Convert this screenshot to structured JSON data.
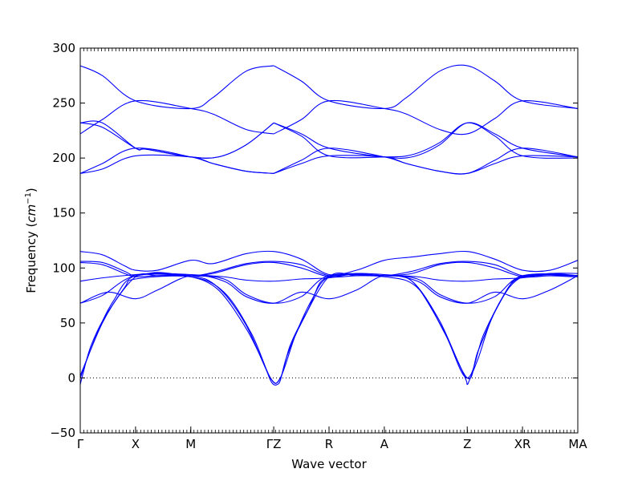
{
  "chart_data": {
    "type": "line",
    "xlabel": "Wave vector",
    "ylabel": {
      "prefix": "Frequency (",
      "unit_base": "cm",
      "unit_exp": "−1",
      "suffix": ")"
    },
    "ylim": [
      -50,
      300
    ],
    "yticks": [
      -50,
      0,
      50,
      100,
      150,
      200,
      250,
      300
    ],
    "grid": false,
    "legend": "none",
    "zero_line": "dotted",
    "line_color": "#0000ff",
    "kpoints": [
      {
        "label": "Γ",
        "x": 0.0
      },
      {
        "label": "X",
        "x": 0.5
      },
      {
        "label": "M",
        "x": 1.0
      },
      {
        "label": "ΓZ",
        "x": 1.75
      },
      {
        "label": "R",
        "x": 2.25
      },
      {
        "label": "A",
        "x": 2.75
      },
      {
        "label": "Z",
        "x": 3.5
      },
      {
        "label": "XR",
        "x": 4.0
      },
      {
        "label": "MA",
        "x": 4.5
      }
    ],
    "series": [
      {
        "values": [
          [
            0,
            284
          ],
          [
            0.2,
            275
          ],
          [
            0.5,
            252
          ],
          [
            1.0,
            245
          ],
          [
            1.2,
            255
          ],
          [
            1.5,
            279
          ],
          [
            1.75,
            284
          ]
        ]
      },
      {
        "values": [
          [
            0,
            232
          ],
          [
            0.2,
            232
          ],
          [
            0.5,
            209
          ],
          [
            0.6,
            208
          ],
          [
            1.0,
            201
          ],
          [
            1.25,
            201
          ],
          [
            1.5,
            212
          ],
          [
            1.75,
            232
          ]
        ]
      },
      {
        "values": [
          [
            0,
            232
          ],
          [
            0.2,
            228
          ],
          [
            0.5,
            209
          ],
          [
            0.6,
            208
          ],
          [
            1.0,
            201
          ],
          [
            1.25,
            201
          ],
          [
            1.5,
            212
          ],
          [
            1.75,
            232
          ]
        ]
      },
      {
        "values": [
          [
            0,
            222
          ],
          [
            0.2,
            235
          ],
          [
            0.5,
            252
          ],
          [
            1.0,
            245
          ],
          [
            1.2,
            240
          ],
          [
            1.5,
            226
          ],
          [
            1.75,
            222
          ]
        ]
      },
      {
        "values": [
          [
            0,
            186
          ],
          [
            0.2,
            190
          ],
          [
            0.5,
            202
          ],
          [
            1.0,
            201
          ],
          [
            1.2,
            195
          ],
          [
            1.5,
            188
          ],
          [
            1.75,
            186
          ]
        ]
      },
      {
        "values": [
          [
            0,
            186
          ],
          [
            0.2,
            195
          ],
          [
            0.5,
            209
          ],
          [
            1.0,
            201
          ],
          [
            1.2,
            195
          ],
          [
            1.5,
            188
          ],
          [
            1.75,
            186
          ]
        ]
      },
      {
        "values": [
          [
            1.75,
            284
          ],
          [
            2.0,
            270
          ],
          [
            2.25,
            252
          ],
          [
            2.75,
            245
          ],
          [
            2.95,
            255
          ],
          [
            3.25,
            279
          ],
          [
            3.5,
            284
          ],
          [
            3.75,
            270
          ],
          [
            4.0,
            252
          ],
          [
            4.5,
            245
          ]
        ]
      },
      {
        "values": [
          [
            1.75,
            232
          ],
          [
            2.0,
            222
          ],
          [
            2.25,
            209
          ],
          [
            2.75,
            201
          ],
          [
            3.0,
            201
          ],
          [
            3.25,
            212
          ],
          [
            3.5,
            232
          ],
          [
            3.75,
            222
          ],
          [
            4.0,
            209
          ],
          [
            4.5,
            201
          ]
        ]
      },
      {
        "values": [
          [
            1.75,
            222
          ],
          [
            2.0,
            235
          ],
          [
            2.25,
            252
          ],
          [
            2.75,
            245
          ],
          [
            2.95,
            240
          ],
          [
            3.25,
            226
          ],
          [
            3.5,
            222
          ],
          [
            3.75,
            236
          ],
          [
            4.0,
            252
          ],
          [
            4.5,
            245
          ]
        ]
      },
      {
        "values": [
          [
            1.75,
            186
          ],
          [
            2.0,
            195
          ],
          [
            2.25,
            202
          ],
          [
            2.75,
            201
          ],
          [
            2.95,
            195
          ],
          [
            3.25,
            188
          ],
          [
            3.5,
            186
          ],
          [
            3.75,
            195
          ],
          [
            4.0,
            202
          ],
          [
            4.5,
            201
          ]
        ]
      },
      {
        "values": [
          [
            1.75,
            186
          ],
          [
            2.0,
            198
          ],
          [
            2.25,
            209
          ],
          [
            2.75,
            201
          ],
          [
            2.95,
            195
          ],
          [
            3.25,
            188
          ],
          [
            3.5,
            186
          ],
          [
            3.75,
            198
          ],
          [
            4.0,
            209
          ],
          [
            4.5,
            201
          ]
        ]
      },
      {
        "values": [
          [
            1.75,
            232
          ],
          [
            2.0,
            220
          ],
          [
            2.25,
            202
          ],
          [
            2.75,
            201
          ],
          [
            3.0,
            203
          ],
          [
            3.25,
            214
          ],
          [
            3.5,
            232
          ],
          [
            3.75,
            220
          ],
          [
            4.0,
            202
          ],
          [
            4.5,
            200
          ]
        ]
      },
      {
        "values": [
          [
            0,
            115
          ],
          [
            0.2,
            112
          ],
          [
            0.4,
            102
          ],
          [
            0.5,
            98
          ],
          [
            0.7,
            98
          ],
          [
            1.0,
            107
          ],
          [
            1.2,
            104
          ],
          [
            1.5,
            113
          ],
          [
            1.75,
            115
          ],
          [
            2.0,
            108
          ],
          [
            2.25,
            94
          ],
          [
            2.5,
            98
          ],
          [
            2.75,
            107
          ],
          [
            3.0,
            110
          ],
          [
            3.25,
            113
          ],
          [
            3.5,
            115
          ],
          [
            3.75,
            108
          ],
          [
            4.0,
            98
          ],
          [
            4.25,
            98
          ],
          [
            4.5,
            107
          ]
        ]
      },
      {
        "values": [
          [
            0,
            106
          ],
          [
            0.2,
            105
          ],
          [
            0.4,
            97
          ],
          [
            0.5,
            93
          ],
          [
            0.7,
            96
          ],
          [
            1.0,
            93
          ],
          [
            1.2,
            96
          ],
          [
            1.5,
            104
          ],
          [
            1.75,
            106
          ],
          [
            2.0,
            103
          ],
          [
            2.25,
            93
          ],
          [
            2.5,
            95
          ],
          [
            2.75,
            93
          ],
          [
            3.0,
            97
          ],
          [
            3.25,
            104
          ],
          [
            3.5,
            106
          ],
          [
            3.75,
            103
          ],
          [
            4.0,
            93
          ],
          [
            4.25,
            95
          ],
          [
            4.5,
            93
          ]
        ]
      },
      {
        "values": [
          [
            0,
            105
          ],
          [
            0.2,
            103
          ],
          [
            0.4,
            95
          ],
          [
            0.5,
            92
          ],
          [
            0.7,
            93
          ],
          [
            1.0,
            93
          ],
          [
            1.2,
            95
          ],
          [
            1.5,
            103
          ],
          [
            1.75,
            105
          ],
          [
            2.0,
            100
          ],
          [
            2.25,
            92
          ],
          [
            2.5,
            93
          ],
          [
            2.75,
            93
          ],
          [
            3.0,
            95
          ],
          [
            3.25,
            103
          ],
          [
            3.5,
            105
          ],
          [
            3.75,
            100
          ],
          [
            4.0,
            92
          ],
          [
            4.25,
            93
          ],
          [
            4.5,
            93
          ]
        ]
      },
      {
        "values": [
          [
            0,
            88
          ],
          [
            0.2,
            91
          ],
          [
            0.5,
            94
          ],
          [
            0.7,
            95
          ],
          [
            1.0,
            94
          ],
          [
            1.3,
            92
          ],
          [
            1.5,
            89
          ],
          [
            1.75,
            88
          ],
          [
            2.0,
            90
          ],
          [
            2.25,
            91
          ],
          [
            2.5,
            95
          ],
          [
            2.75,
            94
          ],
          [
            3.05,
            92
          ],
          [
            3.25,
            89
          ],
          [
            3.5,
            88
          ],
          [
            3.75,
            90
          ],
          [
            4.0,
            91
          ],
          [
            4.25,
            95
          ],
          [
            4.5,
            95
          ]
        ]
      },
      {
        "values": [
          [
            0,
            68
          ],
          [
            0.2,
            75
          ],
          [
            0.5,
            93
          ],
          [
            1.0,
            93
          ],
          [
            1.3,
            90
          ],
          [
            1.5,
            76
          ],
          [
            1.75,
            68
          ],
          [
            2.0,
            74
          ],
          [
            2.25,
            93
          ],
          [
            2.75,
            93
          ],
          [
            3.05,
            90
          ],
          [
            3.25,
            76
          ],
          [
            3.5,
            68
          ],
          [
            3.75,
            74
          ],
          [
            4.0,
            93
          ],
          [
            4.5,
            93
          ]
        ]
      },
      {
        "values": [
          [
            0,
            68
          ],
          [
            0.25,
            78
          ],
          [
            0.5,
            72
          ],
          [
            0.7,
            80
          ],
          [
            1.0,
            93
          ],
          [
            1.3,
            88
          ],
          [
            1.5,
            74
          ],
          [
            1.75,
            68
          ],
          [
            2.0,
            78
          ],
          [
            2.25,
            72
          ],
          [
            2.5,
            80
          ],
          [
            2.75,
            93
          ],
          [
            3.05,
            88
          ],
          [
            3.25,
            74
          ],
          [
            3.5,
            68
          ],
          [
            3.75,
            78
          ],
          [
            4.0,
            72
          ],
          [
            4.25,
            80
          ],
          [
            4.5,
            93
          ]
        ]
      },
      {
        "values": [
          [
            0,
            -6
          ],
          [
            0.02,
            2
          ],
          [
            0.1,
            30
          ],
          [
            0.25,
            60
          ],
          [
            0.5,
            92
          ],
          [
            0.7,
            93
          ],
          [
            1.0,
            92
          ],
          [
            1.25,
            80
          ],
          [
            1.5,
            45
          ],
          [
            1.65,
            15
          ],
          [
            1.72,
            -2
          ],
          [
            1.75,
            -6
          ],
          [
            1.78,
            -6
          ],
          [
            1.81,
            -2
          ],
          [
            1.87,
            20
          ],
          [
            2.0,
            50
          ],
          [
            2.25,
            92
          ],
          [
            2.5,
            93
          ],
          [
            2.75,
            93
          ],
          [
            3.0,
            88
          ],
          [
            3.25,
            50
          ],
          [
            3.42,
            14
          ],
          [
            3.49,
            -2
          ],
          [
            3.5,
            -6
          ],
          [
            3.52,
            -2
          ],
          [
            3.6,
            18
          ],
          [
            3.75,
            60
          ],
          [
            4.0,
            92
          ],
          [
            4.5,
            93
          ]
        ]
      },
      {
        "values": [
          [
            0,
            0
          ],
          [
            0.15,
            40
          ],
          [
            0.3,
            70
          ],
          [
            0.5,
            93
          ],
          [
            1.0,
            93
          ],
          [
            1.25,
            82
          ],
          [
            1.5,
            48
          ],
          [
            1.72,
            0
          ],
          [
            1.81,
            0
          ],
          [
            1.9,
            30
          ],
          [
            2.05,
            60
          ],
          [
            2.25,
            92
          ],
          [
            2.75,
            93
          ],
          [
            3.0,
            88
          ],
          [
            3.25,
            52
          ],
          [
            3.5,
            0
          ],
          [
            3.6,
            25
          ],
          [
            3.8,
            70
          ],
          [
            4.0,
            92
          ],
          [
            4.5,
            93
          ]
        ]
      },
      {
        "values": [
          [
            0,
            2
          ],
          [
            0.2,
            50
          ],
          [
            0.4,
            82
          ],
          [
            0.5,
            90
          ],
          [
            1.0,
            92
          ],
          [
            1.3,
            78
          ],
          [
            1.55,
            40
          ],
          [
            1.72,
            0
          ],
          [
            1.81,
            0
          ],
          [
            1.95,
            40
          ],
          [
            2.1,
            72
          ],
          [
            2.25,
            92
          ],
          [
            2.75,
            92
          ],
          [
            3.05,
            82
          ],
          [
            3.3,
            40
          ],
          [
            3.5,
            0
          ],
          [
            3.65,
            40
          ],
          [
            3.85,
            78
          ],
          [
            4.0,
            92
          ],
          [
            4.5,
            92
          ]
        ]
      }
    ]
  }
}
